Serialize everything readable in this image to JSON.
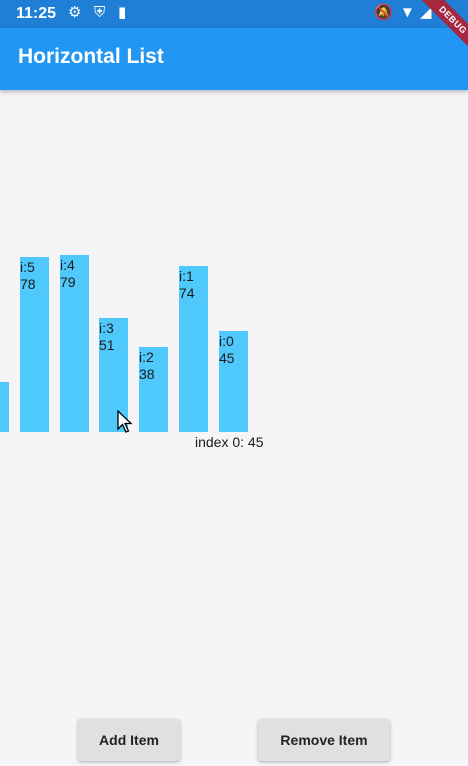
{
  "status_bar": {
    "time": "11:25",
    "left_icons": [
      "gear-icon",
      "shield-icon",
      "sd-card-icon"
    ],
    "right_icons": [
      "bell-off-icon",
      "wifi-icon",
      "signal-icon",
      "battery-icon"
    ]
  },
  "app_bar": {
    "title": "Horizontal List",
    "color": "#2196f3"
  },
  "debug_banner": "DEBUG",
  "bars": [
    {
      "index_label": "i:5",
      "value": "78"
    },
    {
      "index_label": "i:4",
      "value": "79"
    },
    {
      "index_label": "i:3",
      "value": "51"
    },
    {
      "index_label": "i:2",
      "value": "38"
    },
    {
      "index_label": "i:1",
      "value": "74"
    },
    {
      "index_label": "i:0",
      "value": "45"
    }
  ],
  "bar_color": "#4fc8fb",
  "index_text": "index 0: 45",
  "buttons": {
    "add": "Add Item",
    "remove": "Remove Item"
  }
}
